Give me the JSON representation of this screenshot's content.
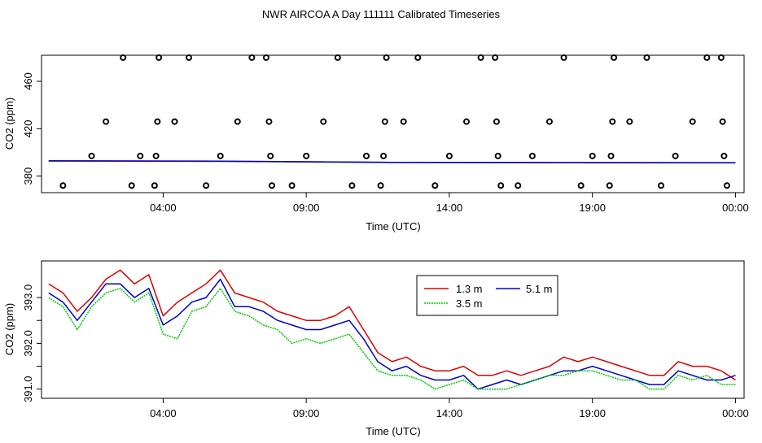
{
  "title": "NWR AIRCOA A  Day 111111  Calibrated Timeseries",
  "colors": {
    "red": "#dd0000",
    "green": "#00cc00",
    "blue": "#0000cc",
    "axis": "#000000"
  },
  "chart_data": [
    {
      "type": "scatter",
      "title": "NWR AIRCOA A  Day 111111  Calibrated Timeseries",
      "xlabel": "Time (UTC)",
      "ylabel": "CO2 (ppm)",
      "xlim": [
        -0.25,
        24.3
      ],
      "ylim": [
        366,
        482
      ],
      "x_ticks": [
        4,
        9,
        14,
        19,
        24
      ],
      "x_tick_labels": [
        "04:00",
        "09:00",
        "14:00",
        "19:00",
        "00:00"
      ],
      "y_ticks": [
        380,
        420,
        460
      ],
      "y_tick_labels": [
        "380",
        "420",
        "460"
      ],
      "calibration_points": [
        {
          "x": 0.5,
          "y": 372
        },
        {
          "x": 1.5,
          "y": 397
        },
        {
          "x": 2.0,
          "y": 426
        },
        {
          "x": 2.6,
          "y": 480
        },
        {
          "x": 2.9,
          "y": 372
        },
        {
          "x": 3.2,
          "y": 397
        },
        {
          "x": 3.7,
          "y": 372
        },
        {
          "x": 3.75,
          "y": 397
        },
        {
          "x": 3.8,
          "y": 426
        },
        {
          "x": 3.85,
          "y": 480
        },
        {
          "x": 4.4,
          "y": 426
        },
        {
          "x": 4.9,
          "y": 480
        },
        {
          "x": 5.5,
          "y": 372
        },
        {
          "x": 6.0,
          "y": 397
        },
        {
          "x": 6.6,
          "y": 426
        },
        {
          "x": 7.1,
          "y": 480
        },
        {
          "x": 7.6,
          "y": 480
        },
        {
          "x": 7.7,
          "y": 426
        },
        {
          "x": 7.75,
          "y": 397
        },
        {
          "x": 7.8,
          "y": 372
        },
        {
          "x": 8.5,
          "y": 372
        },
        {
          "x": 9.0,
          "y": 397
        },
        {
          "x": 9.6,
          "y": 426
        },
        {
          "x": 10.1,
          "y": 480
        },
        {
          "x": 10.6,
          "y": 372
        },
        {
          "x": 11.1,
          "y": 397
        },
        {
          "x": 11.6,
          "y": 372
        },
        {
          "x": 11.7,
          "y": 397
        },
        {
          "x": 11.75,
          "y": 426
        },
        {
          "x": 11.8,
          "y": 480
        },
        {
          "x": 12.4,
          "y": 426
        },
        {
          "x": 12.9,
          "y": 480
        },
        {
          "x": 13.5,
          "y": 372
        },
        {
          "x": 14.0,
          "y": 397
        },
        {
          "x": 14.6,
          "y": 426
        },
        {
          "x": 15.1,
          "y": 480
        },
        {
          "x": 15.6,
          "y": 480
        },
        {
          "x": 15.65,
          "y": 426
        },
        {
          "x": 15.7,
          "y": 397
        },
        {
          "x": 15.8,
          "y": 372
        },
        {
          "x": 16.4,
          "y": 372
        },
        {
          "x": 16.9,
          "y": 397
        },
        {
          "x": 17.5,
          "y": 426
        },
        {
          "x": 18.0,
          "y": 480
        },
        {
          "x": 18.6,
          "y": 372
        },
        {
          "x": 19.0,
          "y": 397
        },
        {
          "x": 19.6,
          "y": 372
        },
        {
          "x": 19.65,
          "y": 397
        },
        {
          "x": 19.7,
          "y": 426
        },
        {
          "x": 19.75,
          "y": 480
        },
        {
          "x": 20.3,
          "y": 426
        },
        {
          "x": 20.9,
          "y": 480
        },
        {
          "x": 21.4,
          "y": 372
        },
        {
          "x": 21.9,
          "y": 397
        },
        {
          "x": 22.5,
          "y": 426
        },
        {
          "x": 23.0,
          "y": 480
        },
        {
          "x": 23.5,
          "y": 480
        },
        {
          "x": 23.55,
          "y": 426
        },
        {
          "x": 23.6,
          "y": 397
        },
        {
          "x": 23.7,
          "y": 372
        }
      ],
      "series": [
        {
          "name": "1.3 m",
          "color": "#dd0000",
          "x": [
            0,
            6,
            12,
            18,
            24
          ],
          "y": [
            392.9,
            392.6,
            391.6,
            391.4,
            391.3
          ]
        },
        {
          "name": "3.5 m",
          "color": "#00cc00",
          "x": [
            0,
            6,
            12,
            18,
            24
          ],
          "y": [
            392.7,
            392.4,
            391.4,
            391.2,
            391.1
          ]
        },
        {
          "name": "5.1 m",
          "color": "#0000cc",
          "x": [
            0,
            6,
            12,
            18,
            24
          ],
          "y": [
            392.8,
            392.5,
            391.5,
            391.3,
            391.2
          ]
        }
      ]
    },
    {
      "type": "line",
      "title": "",
      "xlabel": "Time (UTC)",
      "ylabel": "CO2 (ppm)",
      "xlim": [
        -0.25,
        24.3
      ],
      "ylim": [
        390.8,
        393.8
      ],
      "x_ticks": [
        4,
        9,
        14,
        19,
        24
      ],
      "x_tick_labels": [
        "04:00",
        "09:00",
        "14:00",
        "19:00",
        "00:00"
      ],
      "y_ticks": [
        391.0,
        391.5,
        392.0,
        392.5,
        393.0
      ],
      "y_tick_labels": [
        "391.0",
        "",
        "392.0",
        "",
        "393.0"
      ],
      "legend": {
        "position": "top-center",
        "entries": [
          "1.3 m",
          "5.1 m",
          "3.5 m"
        ]
      },
      "series": [
        {
          "name": "1.3 m",
          "color": "#dd0000",
          "x": [
            0,
            0.5,
            1,
            1.5,
            2,
            2.5,
            3,
            3.5,
            4,
            4.5,
            5,
            5.5,
            6,
            6.5,
            7,
            7.5,
            8,
            8.5,
            9,
            9.5,
            10,
            10.5,
            11,
            11.5,
            12,
            12.5,
            13,
            13.5,
            14,
            14.5,
            15,
            15.5,
            16,
            16.5,
            17,
            17.5,
            18,
            18.5,
            19,
            19.5,
            20,
            20.5,
            21,
            21.5,
            22,
            22.5,
            23,
            23.5,
            24
          ],
          "y": [
            393.3,
            393.1,
            392.7,
            393.0,
            393.4,
            393.6,
            393.3,
            393.5,
            392.6,
            392.9,
            393.1,
            393.3,
            393.6,
            393.1,
            393.0,
            392.9,
            392.7,
            392.6,
            392.5,
            392.5,
            392.6,
            392.8,
            392.3,
            391.8,
            391.6,
            391.7,
            391.5,
            391.4,
            391.4,
            391.5,
            391.3,
            391.3,
            391.4,
            391.3,
            391.4,
            391.5,
            391.7,
            391.6,
            391.7,
            391.6,
            391.5,
            391.4,
            391.3,
            391.3,
            391.6,
            391.5,
            391.5,
            391.4,
            391.2
          ]
        },
        {
          "name": "5.1 m",
          "color": "#0000cc",
          "x": [
            0,
            0.5,
            1,
            1.5,
            2,
            2.5,
            3,
            3.5,
            4,
            4.5,
            5,
            5.5,
            6,
            6.5,
            7,
            7.5,
            8,
            8.5,
            9,
            9.5,
            10,
            10.5,
            11,
            11.5,
            12,
            12.5,
            13,
            13.5,
            14,
            14.5,
            15,
            15.5,
            16,
            16.5,
            17,
            17.5,
            18,
            18.5,
            19,
            19.5,
            20,
            20.5,
            21,
            21.5,
            22,
            22.5,
            23,
            23.5,
            24
          ],
          "y": [
            393.1,
            392.9,
            392.5,
            392.9,
            393.3,
            393.3,
            393.0,
            393.2,
            392.4,
            392.6,
            392.9,
            393.0,
            393.4,
            392.8,
            392.8,
            392.7,
            392.5,
            392.4,
            392.3,
            392.3,
            392.4,
            392.5,
            392.1,
            391.6,
            391.4,
            391.5,
            391.3,
            391.2,
            391.2,
            391.3,
            391.0,
            391.1,
            391.2,
            391.1,
            391.2,
            391.3,
            391.4,
            391.4,
            391.5,
            391.4,
            391.3,
            391.2,
            391.1,
            391.1,
            391.4,
            391.3,
            391.2,
            391.2,
            391.3
          ]
        },
        {
          "name": "3.5 m",
          "color": "#00cc00",
          "x": [
            0,
            0.5,
            1,
            1.5,
            2,
            2.5,
            3,
            3.5,
            4,
            4.5,
            5,
            5.5,
            6,
            6.5,
            7,
            7.5,
            8,
            8.5,
            9,
            9.5,
            10,
            10.5,
            11,
            11.5,
            12,
            12.5,
            13,
            13.5,
            14,
            14.5,
            15,
            15.5,
            16,
            16.5,
            17,
            17.5,
            18,
            18.5,
            19,
            19.5,
            20,
            20.5,
            21,
            21.5,
            22,
            22.5,
            23,
            23.5,
            24
          ],
          "y": [
            393.0,
            392.8,
            392.3,
            392.8,
            393.1,
            393.2,
            392.9,
            393.1,
            392.2,
            392.1,
            392.7,
            392.8,
            393.2,
            392.7,
            392.6,
            392.4,
            392.3,
            392.0,
            392.1,
            392.0,
            392.1,
            392.2,
            391.8,
            391.4,
            391.3,
            391.3,
            391.2,
            391.0,
            391.1,
            391.2,
            391.0,
            391.0,
            391.0,
            391.1,
            391.2,
            391.3,
            391.3,
            391.4,
            391.4,
            391.3,
            391.2,
            391.2,
            391.0,
            391.0,
            391.3,
            391.2,
            391.3,
            391.1,
            391.1
          ]
        }
      ]
    }
  ]
}
